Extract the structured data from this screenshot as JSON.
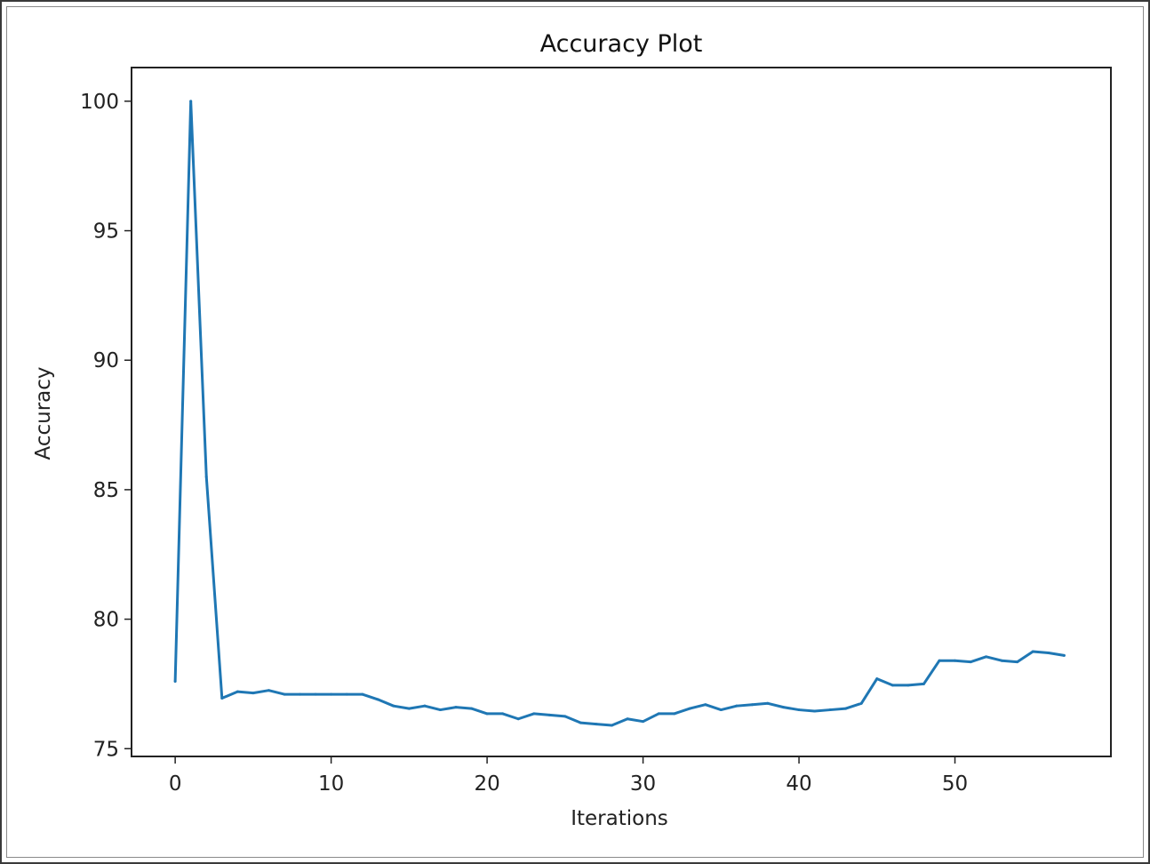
{
  "chart_data": {
    "type": "line",
    "title": "Accuracy Plot",
    "xlabel": "Iterations",
    "ylabel": "Accuracy",
    "xlim": [
      -2.8,
      60.0
    ],
    "ylim": [
      74.7,
      101.3
    ],
    "xticks": [
      0,
      10,
      20,
      30,
      40,
      50
    ],
    "yticks": [
      75,
      80,
      85,
      90,
      95,
      100
    ],
    "grid": false,
    "legend": "none",
    "series": [
      {
        "color": "#1f77b4",
        "x": [
          0,
          1,
          2,
          3,
          4,
          5,
          6,
          7,
          8,
          9,
          10,
          11,
          12,
          13,
          14,
          15,
          16,
          17,
          18,
          19,
          20,
          21,
          22,
          23,
          24,
          25,
          26,
          27,
          28,
          29,
          30,
          31,
          32,
          33,
          34,
          35,
          36,
          37,
          38,
          39,
          40,
          41,
          42,
          43,
          44,
          45,
          46,
          47,
          48,
          49,
          50,
          51,
          52,
          53,
          54,
          55,
          56,
          57
        ],
        "values": [
          77.6,
          100.0,
          85.5,
          76.95,
          77.2,
          77.15,
          77.25,
          77.1,
          77.1,
          77.1,
          77.1,
          77.1,
          77.1,
          76.9,
          76.65,
          76.55,
          76.65,
          76.5,
          76.6,
          76.55,
          76.35,
          76.35,
          76.15,
          76.35,
          76.3,
          76.25,
          76.0,
          75.95,
          75.9,
          76.15,
          76.05,
          76.35,
          76.35,
          76.55,
          76.7,
          76.5,
          76.65,
          76.7,
          76.75,
          76.6,
          76.5,
          76.45,
          76.5,
          76.55,
          76.75,
          77.7,
          77.45,
          77.45,
          77.5,
          78.4,
          78.4,
          78.35,
          78.55,
          78.4,
          78.35,
          78.75,
          78.7,
          78.6
        ]
      }
    ]
  }
}
